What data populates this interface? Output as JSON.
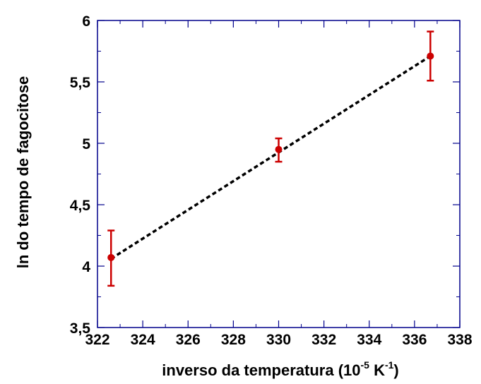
{
  "chart_data": {
    "type": "scatter",
    "xlabel": "inverso da temperatura (10",
    "xlabel_exp1": "-5",
    "xlabel_mid": " K",
    "xlabel_exp2": "-1",
    "xlabel_end": ")",
    "ylabel": "ln do tempo de fagocitose",
    "xlim": [
      322,
      338
    ],
    "ylim": [
      3.5,
      6
    ],
    "x_ticks": [
      {
        "value": 322,
        "label": "322"
      },
      {
        "value": 324,
        "label": "324"
      },
      {
        "value": 326,
        "label": "326"
      },
      {
        "value": 328,
        "label": "328"
      },
      {
        "value": 330,
        "label": "330"
      },
      {
        "value": 332,
        "label": "332"
      },
      {
        "value": 334,
        "label": "334"
      },
      {
        "value": 336,
        "label": "336"
      },
      {
        "value": 338,
        "label": "338"
      }
    ],
    "y_ticks": [
      {
        "value": 3.5,
        "label": "3,5"
      },
      {
        "value": 4,
        "label": "4"
      },
      {
        "value": 4.5,
        "label": "4,5"
      },
      {
        "value": 5,
        "label": "5"
      },
      {
        "value": 5.5,
        "label": "5,5"
      },
      {
        "value": 6,
        "label": "6"
      }
    ],
    "points": [
      {
        "x": 322.6,
        "y": 4.07,
        "err_low": 3.84,
        "err_high": 4.29
      },
      {
        "x": 330.0,
        "y": 4.95,
        "err_low": 4.85,
        "err_high": 5.04
      },
      {
        "x": 336.7,
        "y": 5.71,
        "err_low": 5.51,
        "err_high": 5.91
      }
    ],
    "fit_line": {
      "x": [
        322.6,
        336.7
      ],
      "y": [
        4.06,
        5.71
      ]
    },
    "grid": false,
    "colors": {
      "points": "#cc0000",
      "fit": "#000000",
      "axes": "#00008b"
    }
  }
}
